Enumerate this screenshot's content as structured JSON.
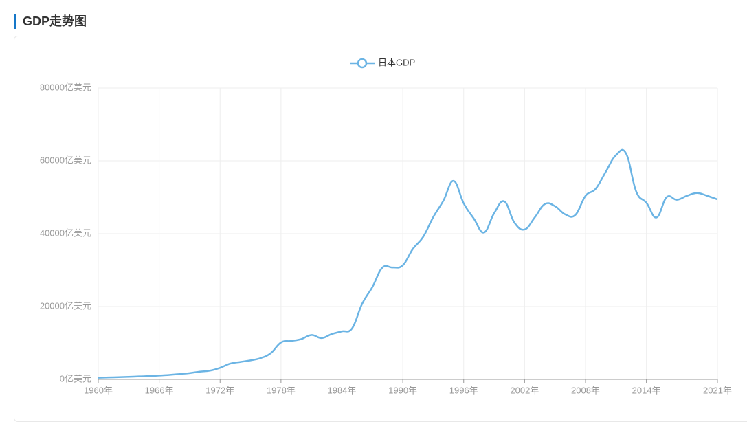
{
  "chart_data": {
    "type": "line",
    "title": "GDP走势图",
    "categories": [
      "1960年",
      null,
      null,
      null,
      null,
      null,
      "1966年",
      null,
      null,
      null,
      null,
      null,
      "1972年",
      null,
      null,
      null,
      null,
      null,
      "1978年",
      null,
      null,
      null,
      null,
      null,
      "1984年",
      null,
      null,
      null,
      null,
      null,
      "1990年",
      null,
      null,
      null,
      null,
      null,
      "1996年",
      null,
      null,
      null,
      null,
      null,
      "2002年",
      null,
      null,
      null,
      null,
      null,
      "2008年",
      null,
      null,
      null,
      null,
      null,
      "2014年",
      null,
      null,
      null,
      null,
      null,
      null,
      "2021年"
    ],
    "series": [
      {
        "name": "日本GDP",
        "color": "#6bb4e4",
        "values": [
          443,
          536,
          608,
          697,
          819,
          910,
          1057,
          1236,
          1469,
          1723,
          2127,
          2403,
          3181,
          4320,
          4796,
          5215,
          5850,
          7216,
          10138,
          10553,
          11054,
          12181,
          11346,
          12438,
          13183,
          13987,
          20786,
          25325,
          30719,
          30723,
          31329,
          35845,
          39089,
          44548,
          49070,
          54491,
          48339,
          44143,
          40328,
          45624,
          48875,
          43036,
          41152,
          44457,
          48151,
          47553,
          45303,
          45152,
          50379,
          52314,
          57001,
          61575,
          62032,
          51557,
          48504,
          44447,
          50037,
          49309,
          50409,
          51177,
          50401,
          49409
        ]
      }
    ],
    "ylim": [
      0,
      80000
    ],
    "yticks": [
      {
        "value": 0,
        "label": "0亿美元"
      },
      {
        "value": 20000,
        "label": "20000亿美元"
      },
      {
        "value": 40000,
        "label": "40000亿美元"
      },
      {
        "value": 60000,
        "label": "60000亿美元"
      },
      {
        "value": 80000,
        "label": "80000亿美元"
      }
    ],
    "grid": true,
    "legend": "top"
  }
}
